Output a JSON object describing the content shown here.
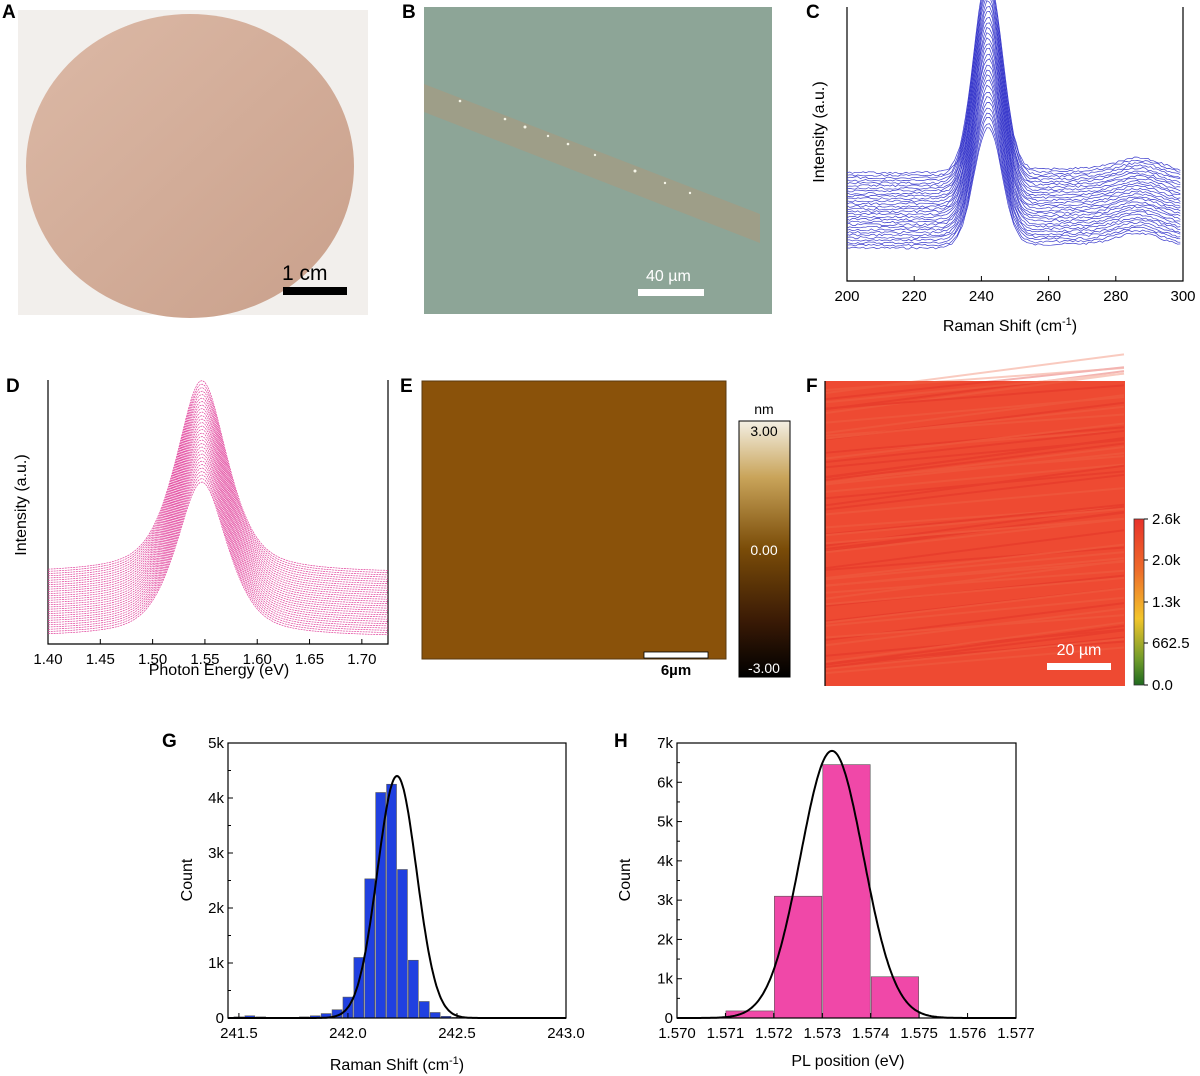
{
  "panels": {
    "A": {
      "label": "A",
      "scalebar": "1 cm"
    },
    "B": {
      "label": "B",
      "scalebar": "40 µm"
    },
    "E": {
      "label": "E",
      "scalebar": "6µm",
      "colorbar_unit": "nm",
      "colorbar_ticks": [
        "3.00",
        "0.00",
        "-3.00"
      ],
      "colors": [
        "#f3efe3",
        "#9c6a0c",
        "#000000"
      ]
    },
    "F": {
      "label": "F",
      "scalebar": "20 µm",
      "colorbar_ticks": [
        "2.6k",
        "2.0k",
        "1.3k",
        "662.5",
        "0.0"
      ],
      "colors": [
        "#e8322a",
        "#f2c52a",
        "#1f6a1f"
      ]
    }
  },
  "chart_data": [
    {
      "panel": "C",
      "type": "line",
      "xlabel": "Raman Shift (cm",
      "xlabel_sup": "-1",
      "xlabel_end": ")",
      "ylabel": "Intensity (a.u.)",
      "xlim": [
        200,
        300
      ],
      "xticks": [
        200,
        220,
        240,
        260,
        280,
        300
      ],
      "peak_center": 242,
      "secondary_peak_center": 287,
      "n_spectra": 30,
      "color": "#3b3bcc"
    },
    {
      "panel": "D",
      "type": "line",
      "xlabel": "Photon Energy (eV)",
      "ylabel": "Intensity (a.u.)",
      "xlim": [
        1.4,
        1.725
      ],
      "xticks": [
        "1.40",
        "1.45",
        "1.50",
        "1.55",
        "1.60",
        "1.65",
        "1.70"
      ],
      "peak_center": 1.547,
      "n_spectra": 30,
      "color": "#e0409a"
    },
    {
      "panel": "G",
      "type": "bar",
      "xlabel": "Raman Shift (cm",
      "xlabel_sup": "-1",
      "xlabel_end": ")",
      "ylabel": "Count",
      "xlim": [
        241.45,
        243.0
      ],
      "ylim": [
        0,
        5000
      ],
      "xticks": [
        "241.5",
        "242.0",
        "242.5",
        "243.0"
      ],
      "yticks": [
        "0",
        "1k",
        "2k",
        "3k",
        "4k",
        "5k"
      ],
      "bin_width": 0.05,
      "bins": [
        241.5,
        241.55,
        241.6,
        241.65,
        241.7,
        241.75,
        241.8,
        241.85,
        241.9,
        241.95,
        242.0,
        242.05,
        242.1,
        242.15,
        242.2,
        242.25,
        242.3,
        242.35,
        242.4,
        242.45,
        242.5,
        242.55,
        242.6,
        242.65,
        242.7
      ],
      "counts": [
        20,
        40,
        20,
        0,
        0,
        10,
        20,
        40,
        80,
        150,
        380,
        1100,
        2530,
        4100,
        4250,
        2700,
        1050,
        300,
        100,
        30,
        10,
        0,
        0,
        0,
        0
      ],
      "fit": {
        "center": 242.225,
        "sigma": 0.09,
        "amplitude": 4400,
        "color": "#000000"
      },
      "color": "#2040e0"
    },
    {
      "panel": "H",
      "type": "bar",
      "xlabel": "PL position (eV)",
      "ylabel": "Count",
      "xlim": [
        1.57,
        1.577
      ],
      "ylim": [
        0,
        7000
      ],
      "xticks": [
        "1.570",
        "1.571",
        "1.572",
        "1.573",
        "1.574",
        "1.575",
        "1.576",
        "1.577"
      ],
      "yticks": [
        "0",
        "1k",
        "2k",
        "3k",
        "4k",
        "5k",
        "6k",
        "7k"
      ],
      "bin_width": 0.001,
      "bins": [
        1.5705,
        1.5715,
        1.5725,
        1.5735,
        1.5745,
        1.5755,
        1.5765
      ],
      "counts": [
        0,
        180,
        3100,
        6450,
        1050,
        0,
        0
      ],
      "fit": {
        "center": 1.5732,
        "sigma": 0.00065,
        "amplitude": 6800,
        "color": "#000000"
      },
      "color": "#f048a8"
    }
  ]
}
